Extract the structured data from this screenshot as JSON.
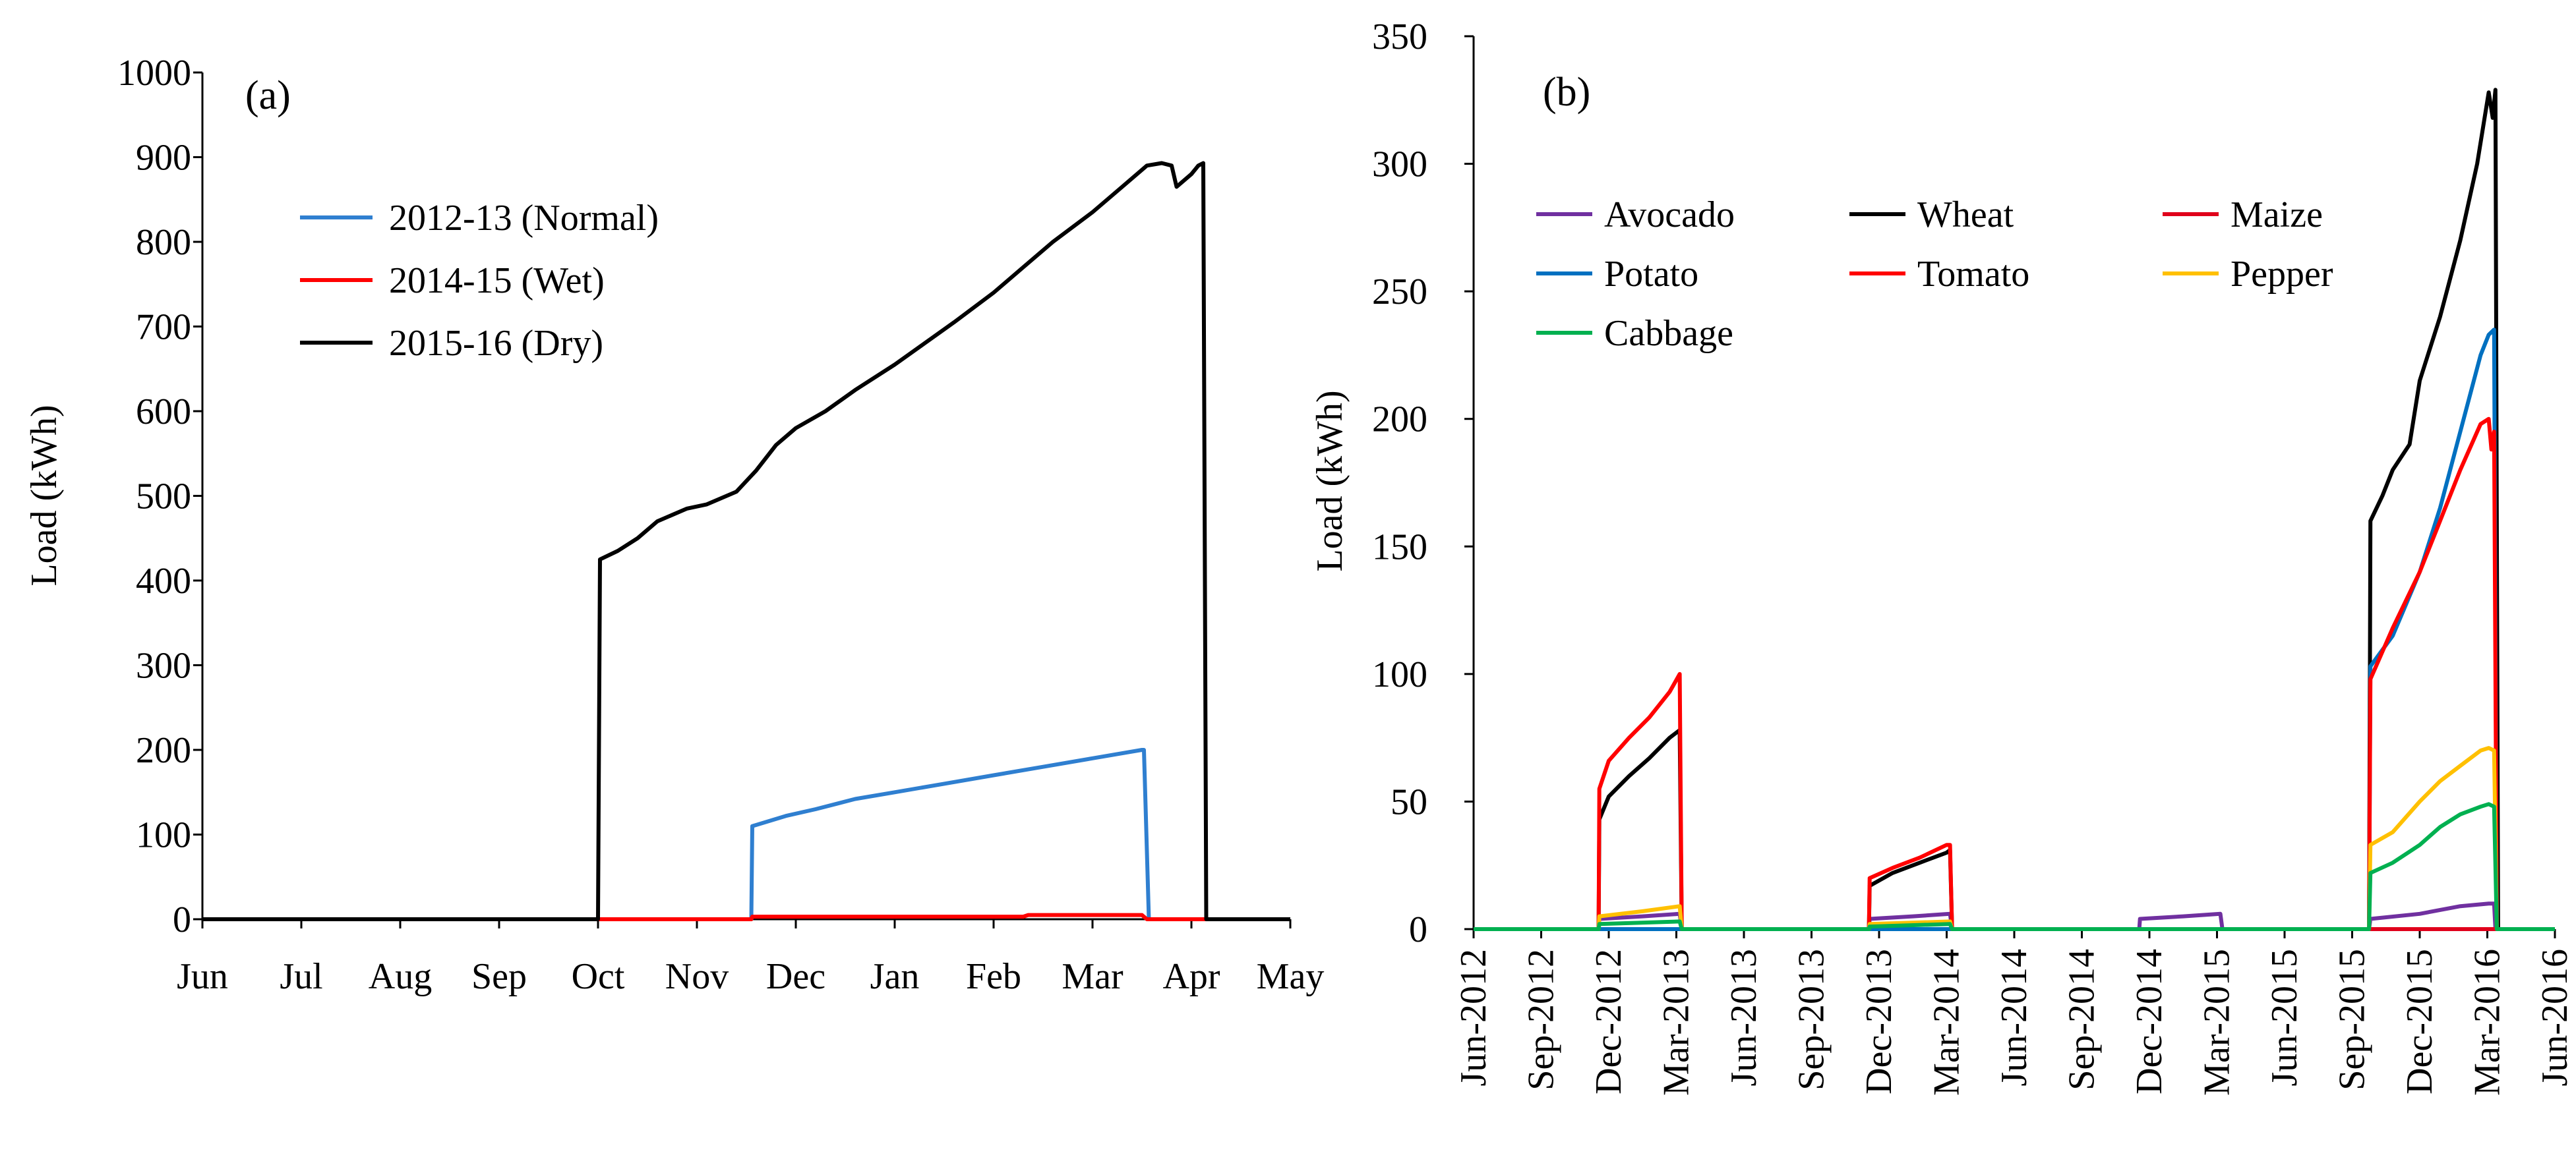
{
  "chart_data": [
    {
      "panel_label": "(a)",
      "type": "line",
      "ylabel": "Load (kWh)",
      "xlabel": "",
      "ylim": [
        0,
        1000
      ],
      "yticks": [
        0,
        100,
        200,
        300,
        400,
        500,
        600,
        700,
        800,
        900,
        1000
      ],
      "xlim": [
        0,
        11
      ],
      "xtick_labels": [
        "Jun",
        "Jul",
        "Aug",
        "Sep",
        "Oct",
        "Nov",
        "Dec",
        "Jan",
        "Feb",
        "Mar",
        "Apr",
        "May"
      ],
      "legend_position": "upper-left",
      "series": [
        {
          "name": "2012-13 (Normal)",
          "color": "#2f7fd0",
          "points": [
            [
              0,
              0
            ],
            [
              5.55,
              0
            ],
            [
              5.56,
              110
            ],
            [
              5.9,
              122
            ],
            [
              6.2,
              130
            ],
            [
              6.6,
              142
            ],
            [
              7.0,
              150
            ],
            [
              7.5,
              160
            ],
            [
              8.0,
              170
            ],
            [
              8.5,
              180
            ],
            [
              9.0,
              190
            ],
            [
              9.5,
              200
            ],
            [
              9.52,
              200
            ],
            [
              9.57,
              0
            ],
            [
              11,
              0
            ]
          ]
        },
        {
          "name": "2014-15 (Wet)",
          "color": "#ff0000",
          "points": [
            [
              0,
              0
            ],
            [
              5.55,
              0
            ],
            [
              5.56,
              3
            ],
            [
              8.3,
              3
            ],
            [
              8.35,
              5
            ],
            [
              9.5,
              5
            ],
            [
              9.55,
              0
            ],
            [
              11,
              0
            ]
          ]
        },
        {
          "name": "2015-16 (Dry)",
          "color": "#000000",
          "points": [
            [
              0,
              0
            ],
            [
              4.0,
              0
            ],
            [
              4.02,
              425
            ],
            [
              4.2,
              435
            ],
            [
              4.4,
              450
            ],
            [
              4.6,
              470
            ],
            [
              4.9,
              485
            ],
            [
              5.1,
              490
            ],
            [
              5.4,
              505
            ],
            [
              5.6,
              530
            ],
            [
              5.8,
              560
            ],
            [
              6.0,
              580
            ],
            [
              6.3,
              600
            ],
            [
              6.6,
              625
            ],
            [
              7.0,
              655
            ],
            [
              7.3,
              680
            ],
            [
              7.6,
              705
            ],
            [
              8.0,
              740
            ],
            [
              8.3,
              770
            ],
            [
              8.6,
              800
            ],
            [
              9.0,
              835
            ],
            [
              9.3,
              865
            ],
            [
              9.55,
              890
            ],
            [
              9.7,
              893
            ],
            [
              9.8,
              890
            ],
            [
              9.85,
              865
            ],
            [
              10.0,
              880
            ],
            [
              10.07,
              890
            ],
            [
              10.12,
              893
            ],
            [
              10.15,
              0
            ],
            [
              11,
              0
            ]
          ]
        }
      ]
    },
    {
      "panel_label": "(b)",
      "type": "line",
      "ylabel": "Load (kWh)",
      "xlabel": "",
      "ylim": [
        0,
        350
      ],
      "yticks": [
        0,
        50,
        100,
        150,
        200,
        250,
        300,
        350
      ],
      "xlim": [
        0,
        16
      ],
      "xtick_labels": [
        "Jun-2012",
        "Sep-2012",
        "Dec-2012",
        "Mar-2013",
        "Jun-2013",
        "Sep-2013",
        "Dec-2013",
        "Mar-2014",
        "Jun-2014",
        "Sep-2014",
        "Dec-2014",
        "Mar-2015",
        "Jun-2015",
        "Sep-2015",
        "Dec-2015",
        "Mar-2016",
        "Jun-2016"
      ],
      "legend_position": "upper-left",
      "series": [
        {
          "name": "Avocado",
          "color": "#7030a0",
          "points": [
            [
              0,
              0
            ],
            [
              1.85,
              0
            ],
            [
              1.86,
              4
            ],
            [
              2.5,
              5
            ],
            [
              3.05,
              6
            ],
            [
              3.08,
              0
            ],
            [
              5.85,
              0
            ],
            [
              5.86,
              4
            ],
            [
              6.5,
              5
            ],
            [
              7.05,
              6
            ],
            [
              7.08,
              0
            ],
            [
              9.85,
              0
            ],
            [
              9.86,
              4
            ],
            [
              10.5,
              5
            ],
            [
              11.05,
              6
            ],
            [
              11.08,
              0
            ],
            [
              13.25,
              0
            ],
            [
              13.27,
              4
            ],
            [
              14.0,
              6
            ],
            [
              14.6,
              9
            ],
            [
              15.02,
              10
            ],
            [
              15.1,
              10
            ],
            [
              15.12,
              0
            ],
            [
              16,
              0
            ]
          ]
        },
        {
          "name": "Wheat",
          "color": "#000000",
          "points": [
            [
              0,
              0
            ],
            [
              1.85,
              0
            ],
            [
              1.86,
              43
            ],
            [
              2.0,
              52
            ],
            [
              2.3,
              60
            ],
            [
              2.6,
              67
            ],
            [
              2.9,
              75
            ],
            [
              3.05,
              78
            ],
            [
              3.08,
              0
            ],
            [
              5.85,
              0
            ],
            [
              5.86,
              17
            ],
            [
              6.2,
              22
            ],
            [
              6.6,
              26
            ],
            [
              7.0,
              30
            ],
            [
              7.05,
              31
            ],
            [
              7.08,
              0
            ],
            [
              13.25,
              0
            ],
            [
              13.27,
              160
            ],
            [
              13.45,
              170
            ],
            [
              13.6,
              180
            ],
            [
              13.85,
              190
            ],
            [
              14.0,
              215
            ],
            [
              14.3,
              240
            ],
            [
              14.6,
              270
            ],
            [
              14.85,
              300
            ],
            [
              15.02,
              328
            ],
            [
              15.08,
              318
            ],
            [
              15.12,
              329
            ],
            [
              15.16,
              0
            ],
            [
              16,
              0
            ]
          ]
        },
        {
          "name": "Maize",
          "color": "#e0001b",
          "points": [
            [
              0,
              0
            ],
            [
              15.12,
              0
            ],
            [
              16,
              0
            ]
          ]
        },
        {
          "name": "Potato",
          "color": "#0070c0",
          "points": [
            [
              0,
              0
            ],
            [
              13.25,
              0
            ],
            [
              13.27,
              103
            ],
            [
              13.6,
              115
            ],
            [
              14.0,
              140
            ],
            [
              14.3,
              165
            ],
            [
              14.6,
              195
            ],
            [
              14.9,
              225
            ],
            [
              15.02,
              233
            ],
            [
              15.1,
              235
            ],
            [
              15.14,
              0
            ],
            [
              16,
              0
            ]
          ]
        },
        {
          "name": "Tomato",
          "color": "#ff0000",
          "points": [
            [
              0,
              0
            ],
            [
              1.85,
              0
            ],
            [
              1.86,
              55
            ],
            [
              2.0,
              66
            ],
            [
              2.3,
              75
            ],
            [
              2.6,
              83
            ],
            [
              2.9,
              93
            ],
            [
              3.05,
              100
            ],
            [
              3.08,
              0
            ],
            [
              5.85,
              0
            ],
            [
              5.86,
              20
            ],
            [
              6.2,
              24
            ],
            [
              6.6,
              28
            ],
            [
              7.0,
              33
            ],
            [
              7.05,
              33
            ],
            [
              7.08,
              0
            ],
            [
              13.25,
              0
            ],
            [
              13.27,
              98
            ],
            [
              13.6,
              118
            ],
            [
              14.0,
              140
            ],
            [
              14.3,
              160
            ],
            [
              14.6,
              180
            ],
            [
              14.9,
              198
            ],
            [
              15.02,
              200
            ],
            [
              15.06,
              188
            ],
            [
              15.1,
              195
            ],
            [
              15.14,
              0
            ],
            [
              16,
              0
            ]
          ]
        },
        {
          "name": "Pepper",
          "color": "#ffc000",
          "points": [
            [
              0,
              0
            ],
            [
              1.85,
              0
            ],
            [
              1.86,
              5
            ],
            [
              2.5,
              7
            ],
            [
              3.05,
              9
            ],
            [
              3.08,
              0
            ],
            [
              5.85,
              0
            ],
            [
              5.86,
              2
            ],
            [
              7.05,
              3
            ],
            [
              7.08,
              0
            ],
            [
              13.25,
              0
            ],
            [
              13.27,
              33
            ],
            [
              13.6,
              38
            ],
            [
              14.0,
              50
            ],
            [
              14.3,
              58
            ],
            [
              14.6,
              64
            ],
            [
              14.9,
              70
            ],
            [
              15.02,
              71
            ],
            [
              15.1,
              70
            ],
            [
              15.14,
              0
            ],
            [
              16,
              0
            ]
          ]
        },
        {
          "name": "Cabbage",
          "color": "#00b050",
          "points": [
            [
              0,
              0
            ],
            [
              1.85,
              0
            ],
            [
              1.86,
              2
            ],
            [
              3.05,
              3
            ],
            [
              3.08,
              0
            ],
            [
              5.85,
              0
            ],
            [
              5.86,
              1
            ],
            [
              7.05,
              2
            ],
            [
              7.08,
              0
            ],
            [
              13.25,
              0
            ],
            [
              13.27,
              22
            ],
            [
              13.6,
              26
            ],
            [
              14.0,
              33
            ],
            [
              14.3,
              40
            ],
            [
              14.6,
              45
            ],
            [
              14.9,
              48
            ],
            [
              15.02,
              49
            ],
            [
              15.1,
              48
            ],
            [
              15.14,
              0
            ],
            [
              16,
              0
            ]
          ]
        }
      ]
    }
  ]
}
